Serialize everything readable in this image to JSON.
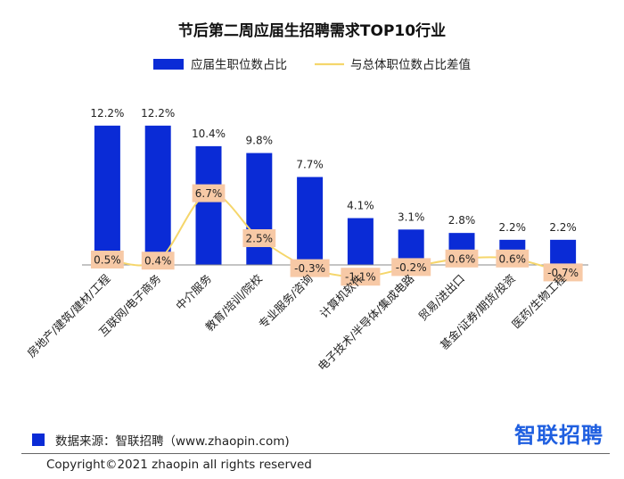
{
  "chart_data": {
    "type": "bar",
    "title": "节后第二周应届生招聘需求TOP10行业",
    "categories": [
      "房地产/建筑/建材/工程",
      "互联网/电子商务",
      "中介服务",
      "教育/培训/院校",
      "专业服务/咨询",
      "计算机软件",
      "电子技术/半导体/集成电路",
      "贸易/进出口",
      "基金/证券/期货/投资",
      "医药/生物工程"
    ],
    "series": [
      {
        "name": "应届生职位数占比",
        "kind": "bar",
        "color": "#0a2bd6",
        "values": [
          12.2,
          12.2,
          10.4,
          9.8,
          7.7,
          4.1,
          3.1,
          2.8,
          2.2,
          2.2
        ],
        "labels": [
          "12.2%",
          "12.2%",
          "10.4%",
          "9.8%",
          "7.7%",
          "4.1%",
          "3.1%",
          "2.8%",
          "2.2%",
          "2.2%"
        ]
      },
      {
        "name": "与总体职位数占比差值",
        "kind": "line",
        "color": "#f5d66b",
        "values": [
          0.5,
          0.4,
          6.7,
          2.5,
          -0.3,
          -1.1,
          -0.2,
          0.6,
          0.6,
          -0.7
        ],
        "labels": [
          "0.5%",
          "0.4%",
          "6.7%",
          "2.5%",
          "-0.3%",
          "-1.1%",
          "-0.2%",
          "0.6%",
          "0.6%",
          "-0.7%"
        ]
      }
    ],
    "legend": "top-center",
    "grid": false
  },
  "footer": {
    "source": "数据来源：智联招聘（www.zhaopin.com)",
    "logo": "智联招聘",
    "copyright": "Copyright©2021 zhaopin all rights reserved"
  },
  "colors": {
    "bar": "#0a2bd6",
    "line": "#f5d66b",
    "label_box": "#f7c9a6"
  }
}
